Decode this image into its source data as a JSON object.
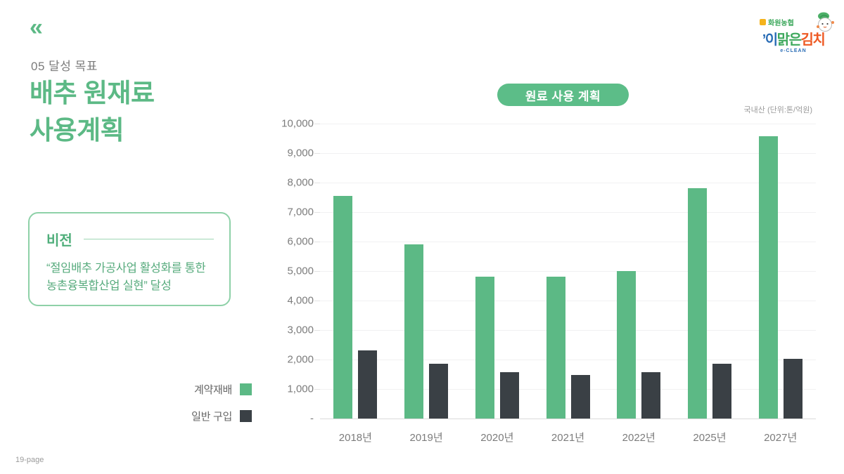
{
  "page": {
    "back_icon": "«",
    "section_label": "05 달성 목표",
    "title_line1": "배추 원재료",
    "title_line2": "사용계획",
    "page_number": "19-page"
  },
  "logo": {
    "coop_name": "화원농협",
    "brand_p1": "’이",
    "brand_p2": "맑은",
    "brand_p3": "김치",
    "sub": "e-CLEAN",
    "colors": {
      "blue": "#2a6db6",
      "green": "#3fa95e",
      "orange": "#ee5a24",
      "emblem_yellow": "#f5b31c"
    }
  },
  "vision": {
    "heading": "비전",
    "body_line1": "“절임배추 가공사업 활성화를 통한",
    "body_line2": "농촌융복합산업 실현” 달성"
  },
  "chart_data": {
    "type": "bar",
    "title": "원료 사용 계획",
    "note": "국내산 (단위:톤/억원)",
    "categories": [
      "2018년",
      "2019년",
      "2020년",
      "2021년",
      "2022년",
      "2025년",
      "2027년"
    ],
    "series": [
      {
        "name": "계약재배",
        "color": "#5cb985",
        "values": [
          7550,
          5900,
          4800,
          4800,
          5000,
          7800,
          9570
        ]
      },
      {
        "name": "일반 구입",
        "color": "#3a4045",
        "values": [
          2300,
          1850,
          1580,
          1470,
          1580,
          1850,
          2020
        ]
      }
    ],
    "xlabel": "",
    "ylabel": "",
    "ylim": [
      0,
      10000
    ],
    "ytick_step": 1000,
    "zero_tick_label": "-",
    "grid": true,
    "legend_position": "left-bottom",
    "accent_color": "#5cb985"
  }
}
